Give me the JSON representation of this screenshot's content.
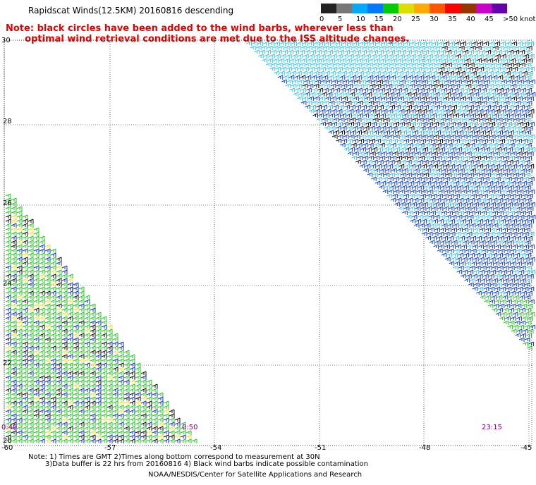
{
  "title": "Rapidscat Winds(12.5KM) 20160816 descending",
  "note": {
    "line1": "Note: black circles have been added to the wind barbs, wherever less than",
    "line2": "optimal wind retrieval conditions are met due to the ISS altitude changes."
  },
  "colorbar": {
    "labels": [
      "0",
      "5",
      "10",
      "15",
      "20",
      "25",
      "30",
      "35",
      "40",
      "45",
      ">50 knots"
    ],
    "colors": [
      "#222222",
      "#777777",
      "#00aaff",
      "#0077ff",
      "#00cc00",
      "#dddd00",
      "#ffaa00",
      "#ff5500",
      "#ff0000",
      "#993300",
      "#cc00cc",
      "#6600aa"
    ]
  },
  "axes": {
    "lat_labels": [
      "30",
      "28",
      "26",
      "24",
      "22",
      "20"
    ],
    "lon_labels": [
      "-60",
      "-57",
      "-54",
      "-51",
      "-48",
      "-45"
    ]
  },
  "time_labels": {
    "left": "0:49",
    "center": "0:50",
    "right": "23:15"
  },
  "footnotes": {
    "line1": "Note: 1) Times are GMT 2)Times along bottom correspond to measurement at 30N",
    "line2": "3)Data buffer is 22 hrs from 20160816 4) Black wind barbs indicate possible contamination"
  },
  "credit": "NOAA/NESDIS/Center for Satellite Applications and Research",
  "swath_colors": {
    "upper_light": "#33ccee",
    "upper_dark": "#1144dd",
    "black": "#111111",
    "green": "#22cc22",
    "blue": "#1133cc",
    "yellow": "#eedd33"
  }
}
